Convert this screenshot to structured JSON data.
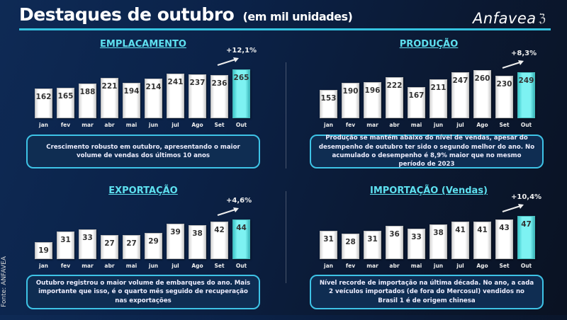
{
  "header": {
    "title": "Destaques de outubro",
    "subtitle": "(em mil unidades)",
    "logo": "Anfavea"
  },
  "source": "Fonte: ANFAVEA",
  "colors": {
    "highlight": "#7df2f2",
    "accent": "#35c3e0",
    "background": "#0b2248"
  },
  "chart_data": [
    {
      "type": "bar",
      "title": "EMPLACAMENTO",
      "categories": [
        "jan",
        "fev",
        "mar",
        "abr",
        "mai",
        "jun",
        "jul",
        "Ago",
        "Set",
        "Out"
      ],
      "values": [
        162,
        165,
        188,
        221,
        194,
        214,
        241,
        237,
        236,
        265
      ],
      "highlight_index": 9,
      "change_label": "+12,1%",
      "note": "Crescimento robusto em outubro, apresentando o maior volume de vendas dos últimos 10 anos"
    },
    {
      "type": "bar",
      "title": "PRODUÇÃO",
      "categories": [
        "jan",
        "fev",
        "mar",
        "abr",
        "mai",
        "jun",
        "jul",
        "Ago",
        "Set",
        "Out"
      ],
      "values": [
        153,
        190,
        196,
        222,
        167,
        211,
        247,
        260,
        230,
        249
      ],
      "highlight_index": 9,
      "change_label": "+8,3%",
      "note": "Produção se mantém abaixo do nível de vendas, apesar do desempenho de outubro ter sido o segundo melhor do ano. No acumulado o desempenho é 8,9% maior que no mesmo período de 2023"
    },
    {
      "type": "bar",
      "title": "EXPORTAÇÃO",
      "categories": [
        "jan",
        "fev",
        "mar",
        "abr",
        "mai",
        "jun",
        "jul",
        "Ago",
        "Set",
        "Out"
      ],
      "values": [
        19,
        31,
        33,
        27,
        27,
        29,
        39,
        38,
        42,
        44
      ],
      "highlight_index": 9,
      "change_label": "+4,6%",
      "note": "Outubro registrou o maior volume de embarques do ano. Mais importante que isso, é o quarto mês seguido de recuperação nas exportações"
    },
    {
      "type": "bar",
      "title": "IMPORTAÇÃO (Vendas)",
      "categories": [
        "jan",
        "fev",
        "mar",
        "abr",
        "mai",
        "jun",
        "jul",
        "Ago",
        "Set",
        "Out"
      ],
      "values": [
        31,
        28,
        31,
        36,
        33,
        38,
        41,
        41,
        43,
        47
      ],
      "highlight_index": 9,
      "change_label": "+10,4%",
      "note": "Nível recorde de importação na última década. No ano, a cada 2 veículos importados (de fora do Mercosul) vendidos no Brasil 1 é de origem chinesa"
    }
  ]
}
